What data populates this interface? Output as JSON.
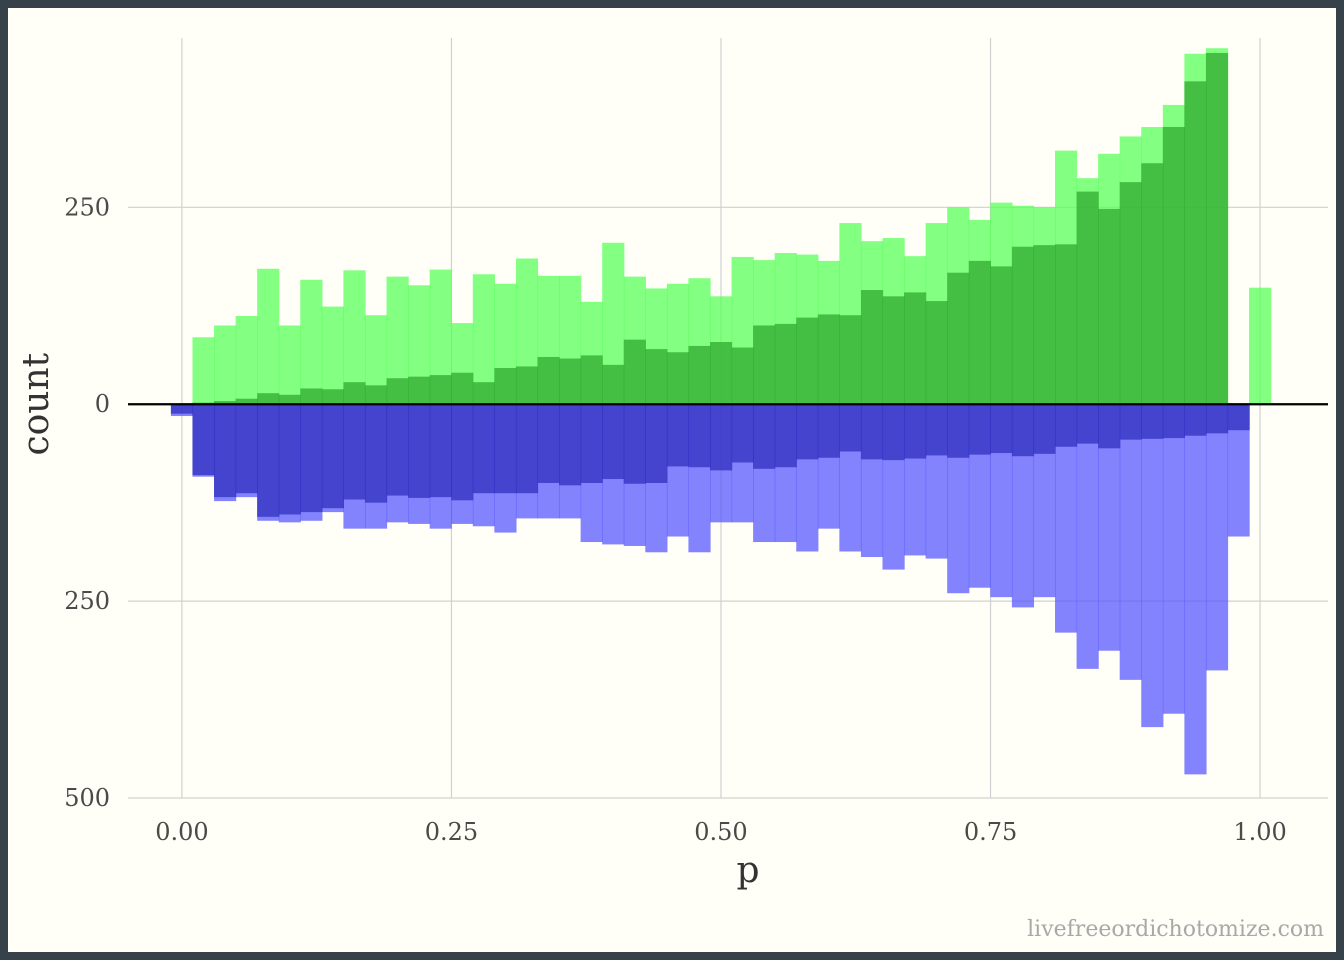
{
  "chart_data": {
    "type": "bar",
    "subtype": "mirrored-overlapping-histogram",
    "title": "",
    "xlabel": "p",
    "ylabel": "count",
    "xlim": [
      -0.05,
      1.063
    ],
    "ylim": [
      -500,
      465
    ],
    "x_ticks": [
      0.0,
      0.25,
      0.5,
      0.75,
      1.0
    ],
    "x_tick_labels": [
      "0.00",
      "0.25",
      "0.50",
      "0.75",
      "1.00"
    ],
    "y_ticks": [
      250,
      0,
      -250,
      -500
    ],
    "y_tick_labels": [
      "250",
      "0",
      "250",
      "500"
    ],
    "grid": true,
    "bin_width": 0.02,
    "bin_centers": [
      -0.0002,
      0.0198,
      0.0398,
      0.0598,
      0.0798,
      0.0998,
      0.1198,
      0.1398,
      0.1598,
      0.1798,
      0.1998,
      0.2198,
      0.2398,
      0.2598,
      0.2798,
      0.2998,
      0.3198,
      0.3398,
      0.3598,
      0.3798,
      0.3998,
      0.4198,
      0.4398,
      0.4598,
      0.4798,
      0.4998,
      0.5198,
      0.5398,
      0.5598,
      0.5798,
      0.5998,
      0.6198,
      0.6398,
      0.6598,
      0.6798,
      0.6998,
      0.7198,
      0.7398,
      0.7598,
      0.7798,
      0.7998,
      0.8198,
      0.8398,
      0.8598,
      0.8798,
      0.8998,
      0.9198,
      0.9398,
      0.9598,
      0.9798,
      0.9998
    ],
    "series": [
      {
        "color": "#5aff5a",
        "opacity": 0.75,
        "direction": "up",
        "values": [
          0,
          85,
          100,
          112,
          172,
          100,
          158,
          124,
          170,
          113,
          162,
          151,
          171,
          103,
          165,
          153,
          185,
          163,
          163,
          130,
          205,
          162,
          147,
          153,
          160,
          137,
          187,
          183,
          192,
          190,
          182,
          230,
          207,
          211,
          188,
          230,
          250,
          234,
          256,
          252,
          250,
          322,
          287,
          318,
          340,
          352,
          380,
          445,
          452,
          0,
          148
        ]
      },
      {
        "color": "#2faa2f",
        "opacity": 0.75,
        "direction": "up",
        "values": [
          0,
          2,
          4,
          7,
          14,
          12,
          20,
          19,
          28,
          24,
          33,
          35,
          37,
          40,
          28,
          46,
          48,
          60,
          58,
          62,
          50,
          82,
          70,
          66,
          74,
          79,
          72,
          100,
          102,
          110,
          114,
          113,
          145,
          137,
          142,
          131,
          167,
          182,
          175,
          200,
          202,
          203,
          270,
          248,
          282,
          306,
          352,
          410,
          446,
          0,
          0
        ]
      },
      {
        "color": "#5a5aff",
        "opacity": 0.75,
        "direction": "down",
        "values": [
          15,
          92,
          123,
          118,
          148,
          150,
          148,
          137,
          158,
          158,
          150,
          152,
          158,
          152,
          155,
          163,
          145,
          145,
          145,
          175,
          178,
          180,
          188,
          168,
          188,
          150,
          150,
          175,
          175,
          187,
          158,
          187,
          194,
          210,
          192,
          196,
          240,
          233,
          245,
          258,
          245,
          290,
          336,
          313,
          350,
          410,
          393,
          470,
          338,
          168,
          0
        ]
      },
      {
        "color": "#2f2fbf",
        "opacity": 0.75,
        "direction": "down",
        "values": [
          12,
          90,
          118,
          113,
          143,
          140,
          137,
          132,
          121,
          125,
          116,
          119,
          118,
          122,
          113,
          113,
          113,
          100,
          103,
          100,
          95,
          101,
          100,
          79,
          80,
          84,
          74,
          82,
          80,
          70,
          68,
          60,
          70,
          71,
          69,
          65,
          68,
          64,
          62,
          66,
          63,
          54,
          50,
          56,
          45,
          44,
          43,
          40,
          37,
          33,
          0
        ]
      }
    ]
  },
  "credit": "livefreeordichotomize.com"
}
